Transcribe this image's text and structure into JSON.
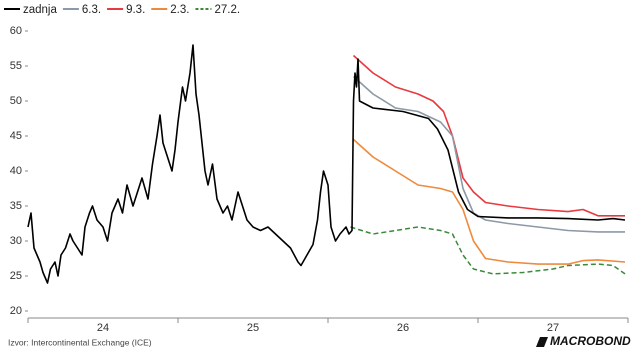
{
  "chart_data": {
    "type": "line",
    "xlim": [
      24,
      28
    ],
    "xticks": [
      {
        "value": 24.5,
        "label": "24"
      },
      {
        "value": 25.5,
        "label": "25"
      },
      {
        "value": 26.5,
        "label": "26"
      },
      {
        "value": 27.5,
        "label": "27"
      }
    ],
    "xminor": [
      24,
      25,
      26,
      27,
      28
    ],
    "ylim": [
      20,
      60
    ],
    "yticks": [
      20,
      25,
      30,
      35,
      40,
      45,
      50,
      55,
      60
    ],
    "grid": false,
    "legend": "top-left",
    "source": "Izvor: Intercontinental Exchange (ICE)",
    "brand": "MACROBOND",
    "series": [
      {
        "name": "zadnja",
        "color": "#000000",
        "dash": false,
        "x": [
          24.0,
          24.02,
          24.04,
          24.06,
          24.08,
          24.1,
          24.13,
          24.15,
          24.18,
          24.2,
          24.22,
          24.25,
          24.28,
          24.3,
          24.33,
          24.36,
          24.38,
          24.41,
          24.43,
          24.46,
          24.5,
          24.53,
          24.56,
          24.6,
          24.63,
          24.66,
          24.7,
          24.73,
          24.76,
          24.8,
          24.83,
          24.86,
          24.88,
          24.9,
          24.93,
          24.96,
          24.98,
          25.0,
          25.03,
          25.05,
          25.08,
          25.1,
          25.12,
          25.14,
          25.16,
          25.18,
          25.2,
          25.23,
          25.26,
          25.28,
          25.3,
          25.33,
          25.36,
          25.4,
          25.43,
          25.46,
          25.5,
          25.55,
          25.6,
          25.65,
          25.7,
          25.75,
          25.8,
          25.82,
          25.86,
          25.9,
          25.93,
          25.95,
          25.97,
          26.0,
          26.02,
          26.05,
          26.08,
          26.12,
          26.14,
          26.16,
          26.17,
          26.18,
          26.19,
          26.2,
          26.21,
          26.3,
          26.5,
          26.67,
          26.73,
          26.8,
          26.87,
          26.93,
          27.0,
          27.2,
          27.4,
          27.6,
          27.8,
          27.9,
          27.98
        ],
        "values": [
          32,
          34,
          29,
          28,
          27,
          25.5,
          24,
          26,
          27,
          25,
          28,
          29,
          31,
          30,
          29,
          28,
          32,
          34,
          35,
          33,
          32,
          30,
          34,
          36,
          34,
          38,
          35,
          37,
          39,
          36,
          41,
          45,
          48,
          44,
          42,
          40,
          43,
          47,
          52,
          50,
          54,
          58,
          51,
          48,
          44,
          40,
          38,
          41,
          36,
          35,
          34,
          35,
          33,
          37,
          35,
          33,
          32,
          31.5,
          32,
          31,
          30,
          29,
          27,
          26.5,
          28,
          29.5,
          33,
          37,
          40,
          38,
          32,
          30,
          31,
          32,
          31,
          31.5,
          50,
          54,
          52,
          56,
          50,
          49,
          48.5,
          47.5,
          46,
          43,
          37,
          34.5,
          33.5,
          33.3,
          33.3,
          33.2,
          33,
          33.2,
          33
        ]
      },
      {
        "name": "6.3.",
        "color": "#8c99a6",
        "dash": false,
        "x": [
          26.17,
          26.3,
          26.45,
          26.6,
          26.75,
          26.83,
          26.9,
          26.97,
          27.05,
          27.2,
          27.4,
          27.6,
          27.8,
          27.98
        ],
        "values": [
          53.5,
          51,
          49,
          48.5,
          47,
          45,
          37.5,
          34,
          33,
          32.5,
          32,
          31.5,
          31.3,
          31.3
        ]
      },
      {
        "name": "9.3.",
        "color": "#e8393f",
        "dash": false,
        "x": [
          26.17,
          26.3,
          26.45,
          26.6,
          26.7,
          26.77,
          26.83,
          26.9,
          26.97,
          27.05,
          27.2,
          27.4,
          27.6,
          27.7,
          27.8,
          27.98
        ],
        "values": [
          56.5,
          54,
          52,
          51,
          50,
          48.5,
          45,
          39,
          37,
          35.5,
          35,
          34.5,
          34.2,
          34.5,
          33.6,
          33.6
        ]
      },
      {
        "name": "2.3.",
        "color": "#ee8a3c",
        "dash": false,
        "x": [
          26.17,
          26.3,
          26.45,
          26.6,
          26.75,
          26.83,
          26.9,
          26.97,
          27.05,
          27.2,
          27.4,
          27.6,
          27.7,
          27.8,
          27.98
        ],
        "values": [
          44.5,
          42,
          40,
          38,
          37.5,
          37,
          34.5,
          30,
          27.5,
          27,
          26.7,
          26.7,
          27.2,
          27.3,
          27
        ]
      },
      {
        "name": "27.2.",
        "color": "#3a8a3a",
        "dash": true,
        "x": [
          26.15,
          26.3,
          26.45,
          26.6,
          26.75,
          26.83,
          26.9,
          26.97,
          27.1,
          27.3,
          27.5,
          27.6,
          27.8,
          27.9,
          27.98
        ],
        "values": [
          32,
          31,
          31.5,
          32,
          31.5,
          31,
          28,
          26,
          25.3,
          25.5,
          26,
          26.5,
          26.7,
          26.5,
          25.3
        ]
      }
    ]
  }
}
